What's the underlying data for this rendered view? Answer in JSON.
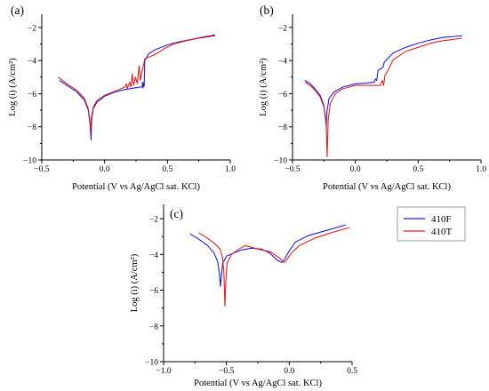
{
  "colors": {
    "410F": "#1f1fe0",
    "410T": "#e02020",
    "axis": "#000000"
  },
  "legend": [
    {
      "name": "410F",
      "color": "#1f1fe0"
    },
    {
      "name": "410T",
      "color": "#e02020"
    }
  ],
  "chart_data": [
    {
      "id": "a",
      "panel_label": "(a)",
      "type": "line",
      "xlabel": "Potential (V vs Ag/AgCl sat. KCl)",
      "ylabel": "Log (i) (A/cm²)",
      "xlim": [
        -0.5,
        1.0
      ],
      "ylim": [
        -10,
        -1.2
      ],
      "xticks": [
        -0.5,
        0.0,
        0.5,
        1.0
      ],
      "xtick_labels": [
        "−0.5",
        "0.0",
        "0.5",
        "1.0"
      ],
      "yticks": [
        -10,
        -8,
        -6,
        -4,
        -2
      ],
      "ytick_labels": [
        "−10",
        "−8",
        "−6",
        "−4",
        "−2"
      ],
      "series": [
        {
          "name": "410F",
          "points": [
            [
              -0.36,
              -5.2
            ],
            [
              -0.3,
              -5.5
            ],
            [
              -0.22,
              -5.9
            ],
            [
              -0.16,
              -6.4
            ],
            [
              -0.13,
              -7.0
            ],
            [
              -0.115,
              -7.9
            ],
            [
              -0.108,
              -8.8
            ],
            [
              -0.103,
              -7.6
            ],
            [
              -0.09,
              -6.9
            ],
            [
              -0.06,
              -6.5
            ],
            [
              0.0,
              -6.15
            ],
            [
              0.08,
              -5.9
            ],
            [
              0.16,
              -5.75
            ],
            [
              0.24,
              -5.65
            ],
            [
              0.28,
              -5.6
            ],
            [
              0.3,
              -5.6
            ],
            [
              0.3,
              -5.3
            ],
            [
              0.305,
              -5.65
            ],
            [
              0.31,
              -5.35
            ],
            [
              0.315,
              -5.55
            ],
            [
              0.318,
              -4.6
            ],
            [
              0.32,
              -4.0
            ],
            [
              0.35,
              -3.6
            ],
            [
              0.4,
              -3.35
            ],
            [
              0.5,
              -3.05
            ],
            [
              0.6,
              -2.85
            ],
            [
              0.7,
              -2.7
            ],
            [
              0.8,
              -2.55
            ],
            [
              0.88,
              -2.45
            ]
          ]
        },
        {
          "name": "410T",
          "points": [
            [
              -0.37,
              -5.0
            ],
            [
              -0.3,
              -5.4
            ],
            [
              -0.22,
              -5.8
            ],
            [
              -0.16,
              -6.3
            ],
            [
              -0.13,
              -6.9
            ],
            [
              -0.118,
              -7.6
            ],
            [
              -0.112,
              -8.3
            ],
            [
              -0.106,
              -7.5
            ],
            [
              -0.09,
              -6.8
            ],
            [
              -0.06,
              -6.4
            ],
            [
              0.0,
              -6.1
            ],
            [
              0.08,
              -5.85
            ],
            [
              0.16,
              -5.6
            ],
            [
              0.175,
              -5.4
            ],
            [
              0.18,
              -5.7
            ],
            [
              0.2,
              -5.3
            ],
            [
              0.21,
              -5.6
            ],
            [
              0.22,
              -4.8
            ],
            [
              0.23,
              -5.5
            ],
            [
              0.245,
              -5.0
            ],
            [
              0.26,
              -5.4
            ],
            [
              0.275,
              -4.3
            ],
            [
              0.285,
              -5.2
            ],
            [
              0.3,
              -4.6
            ],
            [
              0.32,
              -3.9
            ],
            [
              0.38,
              -3.7
            ],
            [
              0.42,
              -3.55
            ],
            [
              0.48,
              -3.25
            ],
            [
              0.55,
              -3.0
            ],
            [
              0.65,
              -2.8
            ],
            [
              0.75,
              -2.65
            ],
            [
              0.88,
              -2.5
            ]
          ]
        }
      ]
    },
    {
      "id": "b",
      "panel_label": "(b)",
      "type": "line",
      "xlabel": "Potential (V vs Ag/AgCl sat. KCl)",
      "ylabel": "Log (i) (A/cm²)",
      "xlim": [
        -0.5,
        1.0
      ],
      "ylim": [
        -10,
        -1.2
      ],
      "xticks": [
        -0.5,
        0.0,
        0.5,
        1.0
      ],
      "xtick_labels": [
        "−0.5",
        "0.0",
        "0.5",
        "1.0"
      ],
      "yticks": [
        -10,
        -8,
        -6,
        -4,
        -2
      ],
      "ytick_labels": [
        "−10",
        "−8",
        "−6",
        "−4",
        "−2"
      ],
      "series": [
        {
          "name": "410F",
          "points": [
            [
              -0.4,
              -5.2
            ],
            [
              -0.36,
              -5.4
            ],
            [
              -0.32,
              -5.7
            ],
            [
              -0.28,
              -6.1
            ],
            [
              -0.25,
              -6.7
            ],
            [
              -0.238,
              -7.4
            ],
            [
              -0.232,
              -8.0
            ],
            [
              -0.226,
              -7.1
            ],
            [
              -0.21,
              -6.3
            ],
            [
              -0.17,
              -5.9
            ],
            [
              -0.1,
              -5.6
            ],
            [
              0.0,
              -5.4
            ],
            [
              0.1,
              -5.35
            ],
            [
              0.15,
              -5.3
            ],
            [
              0.16,
              -5.1
            ],
            [
              0.17,
              -5.2
            ],
            [
              0.18,
              -4.6
            ],
            [
              0.22,
              -4.4
            ],
            [
              0.23,
              -4.1
            ],
            [
              0.3,
              -3.55
            ],
            [
              0.4,
              -3.2
            ],
            [
              0.5,
              -2.95
            ],
            [
              0.6,
              -2.75
            ],
            [
              0.7,
              -2.6
            ],
            [
              0.85,
              -2.5
            ]
          ]
        },
        {
          "name": "410T",
          "points": [
            [
              -0.4,
              -5.3
            ],
            [
              -0.36,
              -5.5
            ],
            [
              -0.32,
              -5.8
            ],
            [
              -0.28,
              -6.2
            ],
            [
              -0.25,
              -6.8
            ],
            [
              -0.232,
              -7.8
            ],
            [
              -0.224,
              -9.8
            ],
            [
              -0.216,
              -7.6
            ],
            [
              -0.2,
              -6.6
            ],
            [
              -0.16,
              -6.0
            ],
            [
              -0.1,
              -5.7
            ],
            [
              0.0,
              -5.5
            ],
            [
              0.1,
              -5.5
            ],
            [
              0.2,
              -5.5
            ],
            [
              0.215,
              -5.2
            ],
            [
              0.225,
              -5.5
            ],
            [
              0.235,
              -4.9
            ],
            [
              0.26,
              -4.6
            ],
            [
              0.3,
              -3.95
            ],
            [
              0.4,
              -3.45
            ],
            [
              0.5,
              -3.2
            ],
            [
              0.6,
              -2.95
            ],
            [
              0.7,
              -2.8
            ],
            [
              0.85,
              -2.65
            ]
          ]
        }
      ]
    },
    {
      "id": "c",
      "panel_label": "(c)",
      "type": "line",
      "xlabel": "Potential (V vs Ag/AgCl sat. KCl)",
      "ylabel": "Log (i) (A/cm²)",
      "xlim": [
        -1.0,
        0.5
      ],
      "ylim": [
        -10,
        -1.2
      ],
      "xticks": [
        -1.0,
        -0.5,
        0.0,
        0.5
      ],
      "xtick_labels": [
        "−1.0",
        "−0.5",
        "0.0",
        "0.5"
      ],
      "yticks": [
        -10,
        -8,
        -6,
        -4,
        -2
      ],
      "ytick_labels": [
        "−10",
        "−8",
        "−6",
        "−4",
        "−2"
      ],
      "series": [
        {
          "name": "410F",
          "points": [
            [
              -0.79,
              -2.85
            ],
            [
              -0.72,
              -3.15
            ],
            [
              -0.65,
              -3.5
            ],
            [
              -0.6,
              -3.9
            ],
            [
              -0.57,
              -4.4
            ],
            [
              -0.555,
              -5.1
            ],
            [
              -0.548,
              -5.8
            ],
            [
              -0.54,
              -5.2
            ],
            [
              -0.53,
              -4.5
            ],
            [
              -0.5,
              -4.1
            ],
            [
              -0.45,
              -3.95
            ],
            [
              -0.38,
              -3.75
            ],
            [
              -0.3,
              -3.65
            ],
            [
              -0.22,
              -3.7
            ],
            [
              -0.15,
              -3.95
            ],
            [
              -0.1,
              -4.3
            ],
            [
              -0.06,
              -4.45
            ],
            [
              -0.04,
              -4.3
            ],
            [
              0.0,
              -3.8
            ],
            [
              0.05,
              -3.3
            ],
            [
              0.15,
              -2.95
            ],
            [
              0.3,
              -2.65
            ],
            [
              0.45,
              -2.35
            ]
          ]
        },
        {
          "name": "410T",
          "points": [
            [
              -0.72,
              -2.8
            ],
            [
              -0.66,
              -3.05
            ],
            [
              -0.6,
              -3.35
            ],
            [
              -0.55,
              -3.7
            ],
            [
              -0.53,
              -4.2
            ],
            [
              -0.52,
              -5.0
            ],
            [
              -0.512,
              -6.9
            ],
            [
              -0.505,
              -5.5
            ],
            [
              -0.495,
              -4.5
            ],
            [
              -0.46,
              -4.0
            ],
            [
              -0.4,
              -3.7
            ],
            [
              -0.35,
              -3.5
            ],
            [
              -0.3,
              -3.6
            ],
            [
              -0.22,
              -3.75
            ],
            [
              -0.15,
              -3.85
            ],
            [
              -0.08,
              -4.2
            ],
            [
              -0.04,
              -4.45
            ],
            [
              -0.02,
              -4.3
            ],
            [
              0.02,
              -3.9
            ],
            [
              0.08,
              -3.5
            ],
            [
              0.2,
              -3.1
            ],
            [
              0.35,
              -2.75
            ],
            [
              0.48,
              -2.5
            ]
          ]
        }
      ]
    }
  ]
}
